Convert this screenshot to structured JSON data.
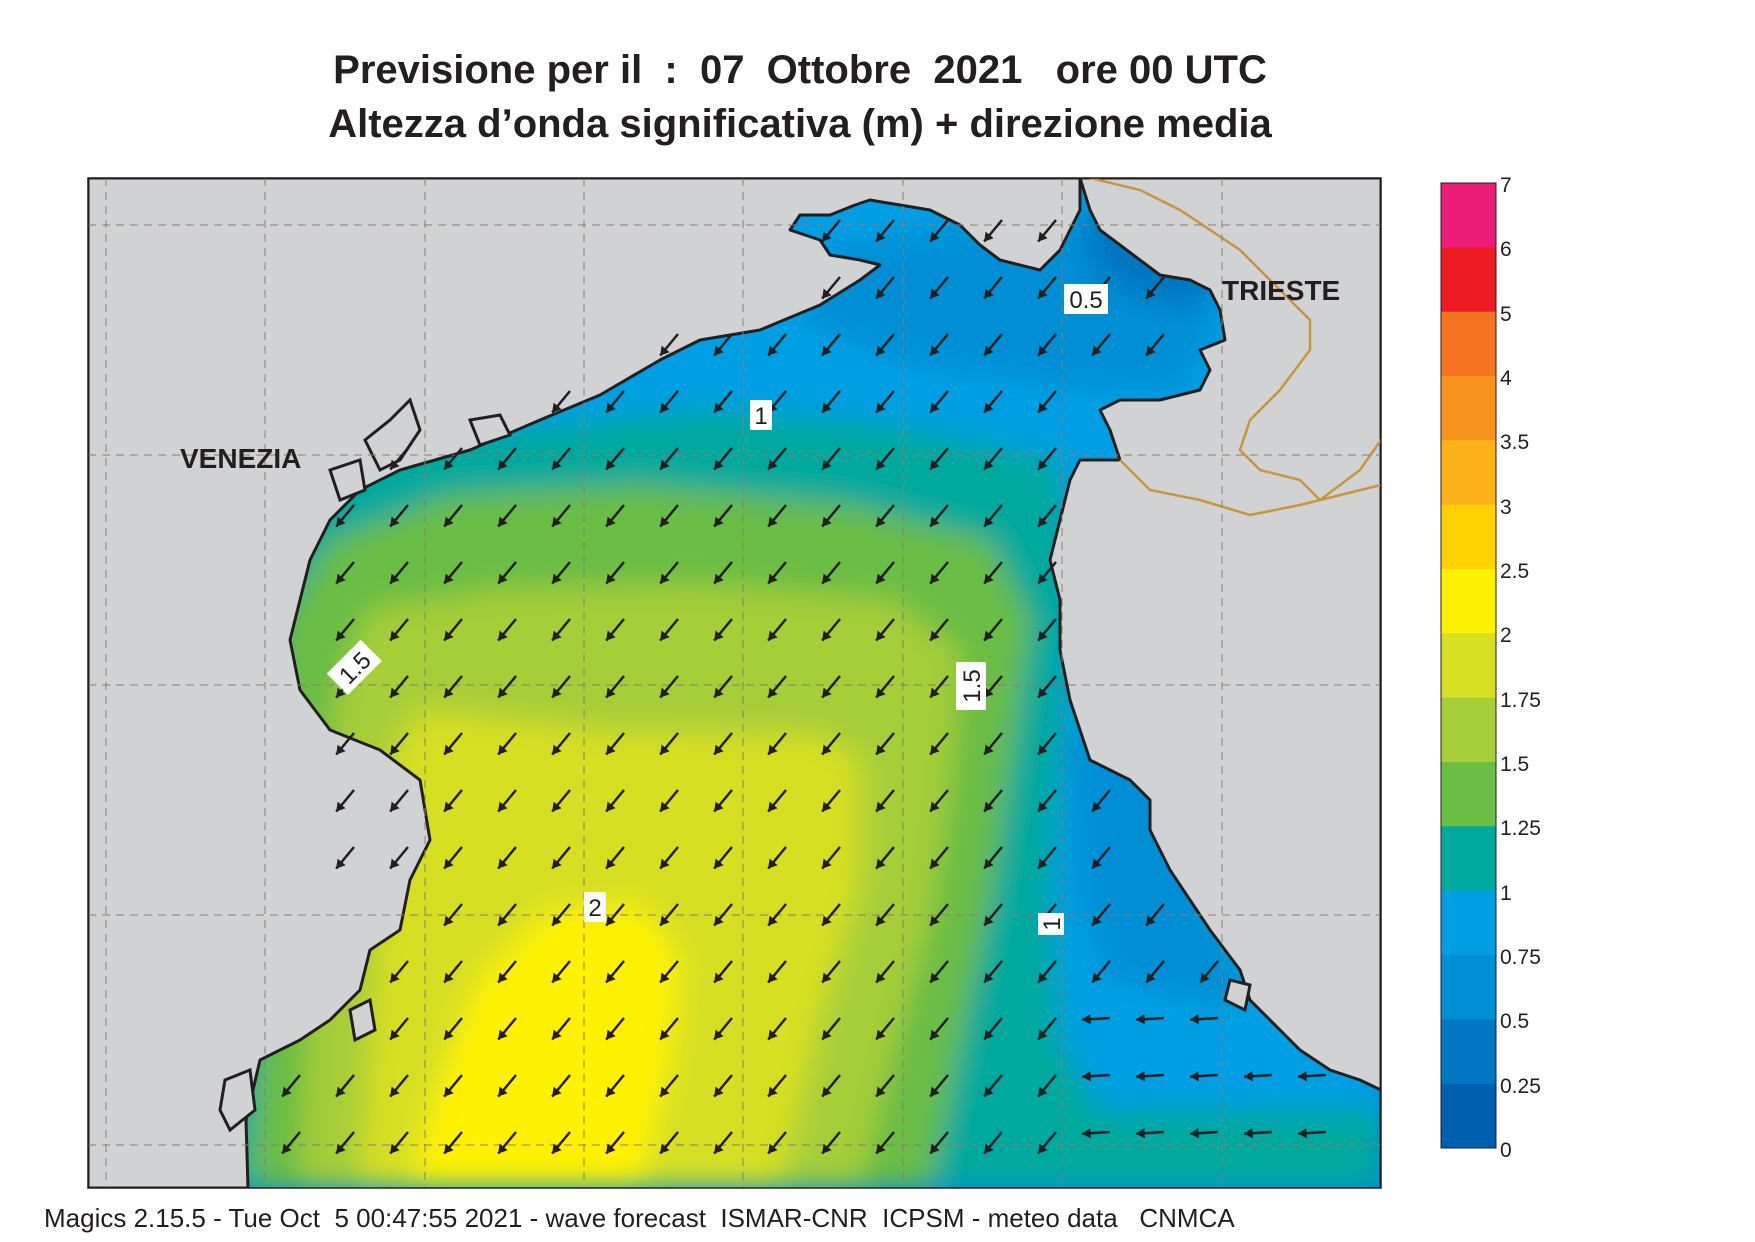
{
  "header": {
    "title_line1": "Previsione per il  :  07  Ottobre  2021   ore 00 UTC",
    "title_line2": "Altezza d’onda significativa (m) + direzione media"
  },
  "map": {
    "city_labels": {
      "venezia": "VENEZIA",
      "trieste": "TRIESTE"
    },
    "contour_labels": [
      "0.5",
      "1",
      "1.5",
      "1.5",
      "2",
      "1"
    ],
    "land_color": "#d1d2d4",
    "coast_color": "#231f20",
    "border_color": "#c8963e",
    "arrow_color": "#231f20"
  },
  "legend": {
    "title": "",
    "levels": [
      "7",
      "6",
      "5",
      "4",
      "3.5",
      "3",
      "2.5",
      "2",
      "1.75",
      "1.5",
      "1.25",
      "1",
      "0.75",
      "0.5",
      "0.25",
      "0"
    ],
    "colors": [
      "#ec1c79",
      "#ed1c24",
      "#f47321",
      "#f7941d",
      "#fbb118",
      "#ffd200",
      "#fff200",
      "#d7df23",
      "#a6ce39",
      "#6abd45",
      "#00a99d",
      "#009fe3",
      "#008fd5",
      "#0077c0",
      "#005fae"
    ]
  },
  "footer": {
    "text": "Magics 2.15.5 - Tue Oct  5 00:47:55 2021 - wave forecast  ISMAR-CNR  ICPSM - meteo data   CNMCA"
  }
}
